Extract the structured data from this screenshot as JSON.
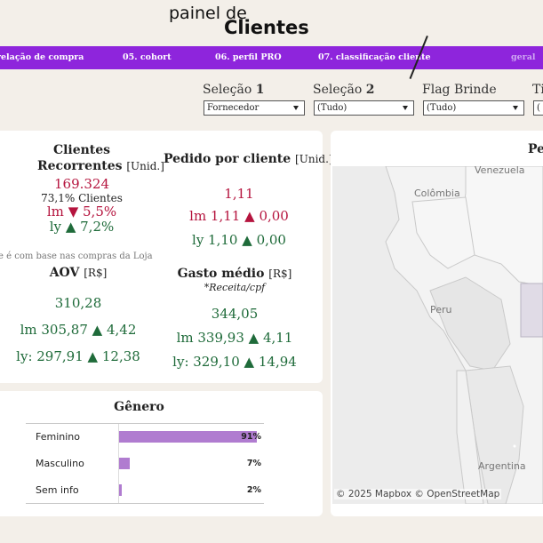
{
  "header": {
    "title_small": "painel de",
    "title_big": "Clientes"
  },
  "nav": {
    "items": [
      {
        "label": "relação de compra"
      },
      {
        "label": "05. cohort"
      },
      {
        "label": "06. perfil PRO"
      },
      {
        "label": "07. classificação cliente"
      },
      {
        "label": "geral"
      }
    ]
  },
  "filters": [
    {
      "label_prefix": "Seleção ",
      "label_bold": "1",
      "value": "Fornecedor"
    },
    {
      "label_prefix": "Seleção ",
      "label_bold": "2",
      "value": "(Tudo)"
    },
    {
      "label_prefix": "Flag Brinde",
      "label_bold": "",
      "value": "(Tudo)"
    },
    {
      "label_prefix": "Ti",
      "label_bold": "",
      "value": "("
    }
  ],
  "kpis": {
    "recorrentes": {
      "title_line1": "Clientes",
      "title_line2": "Recorrentes",
      "unit": "[Unid.]",
      "value": "169.324",
      "sub": "73,1% Clientes",
      "lm_label": "lm",
      "lm_arrow": "▼",
      "lm_value": "5,5%",
      "ly_label": "ly",
      "ly_arrow": "▲",
      "ly_value": "7,2%"
    },
    "pedido": {
      "title": "Pedido por cliente",
      "unit": "[Unid.]",
      "value": "1,11",
      "lm_text": "lm 1,11",
      "lm_arrow": "▲",
      "lm_delta": "0,00",
      "ly_text": "ly 1,10",
      "ly_arrow": "▲",
      "ly_delta": "0,00"
    },
    "note": "te é com base nas compras da Loja",
    "aov": {
      "title": "AOV",
      "unit": "[R$]",
      "value": "310,28",
      "lm_text": "lm 305,87",
      "lm_arrow": "▲",
      "lm_delta": "4,42",
      "ly_text": "ly: 297,91",
      "ly_arrow": "▲",
      "ly_delta": "12,38"
    },
    "gasto": {
      "title": "Gasto médio",
      "unit": "[R$]",
      "subtitle": "*Receita/cpf",
      "value": "344,05",
      "lm_text": "lm 339,93",
      "lm_arrow": "▲",
      "lm_delta": "4,11",
      "ly_text": "ly: 329,10",
      "ly_arrow": "▲",
      "ly_delta": "14,94"
    }
  },
  "genero": {
    "title": "Gênero",
    "accent": "#b07cd0",
    "rows": [
      {
        "label": "Feminino",
        "pct_label": "91%",
        "value": 0.91
      },
      {
        "label": "Masculino",
        "pct_label": "7%",
        "value": 0.07
      },
      {
        "label": "Sem info",
        "pct_label": "2%",
        "value": 0.02
      }
    ]
  },
  "map": {
    "title": "Pe",
    "labels": {
      "venezuela": "Venezuela",
      "colombia": "Colômbia",
      "peru": "Peru",
      "argentina": "Argentina"
    },
    "attribution": "© 2025 Mapbox  © OpenStreetMap"
  },
  "colors": {
    "nav": "#8e25dc",
    "negative": "#b5143e",
    "positive": "#1f6b3a"
  }
}
